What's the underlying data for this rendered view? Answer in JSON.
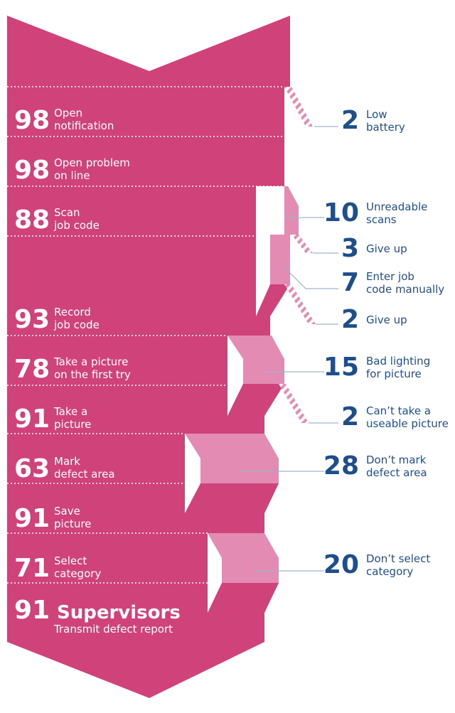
{
  "colors": {
    "main": "#d0427a",
    "branch": "#e38bb2",
    "text_numbers": "#1f4e8c",
    "connector": "#9db3cc"
  },
  "steps": [
    {
      "value": "98",
      "label": [
        "Open",
        "notification"
      ]
    },
    {
      "value": "98",
      "label": [
        "Open problem",
        "on line"
      ]
    },
    {
      "value": "88",
      "label": [
        "Scan",
        "job code"
      ]
    },
    {
      "value": "93",
      "label": [
        "Record",
        "job code"
      ]
    },
    {
      "value": "78",
      "label": [
        "Take a picture",
        "on the first try"
      ]
    },
    {
      "value": "91",
      "label": [
        "Take a",
        "picture"
      ]
    },
    {
      "value": "63",
      "label": [
        "Mark",
        "defect area"
      ]
    },
    {
      "value": "91",
      "label": [
        "Save",
        "picture"
      ]
    },
    {
      "value": "71",
      "label": [
        "Select",
        "category"
      ]
    }
  ],
  "final_step": {
    "value": "91",
    "title": "Supervisors",
    "subtitle": "Transmit defect report"
  },
  "dropouts": [
    {
      "value": "2",
      "label": [
        "Low",
        "battery"
      ]
    },
    {
      "value": "10",
      "label": [
        "Unreadable",
        "scans"
      ]
    },
    {
      "value": "3",
      "label": [
        "Give up"
      ]
    },
    {
      "value": "7",
      "label": [
        "Enter job",
        "code manually"
      ]
    },
    {
      "value": "2",
      "label": [
        "Give up"
      ]
    },
    {
      "value": "15",
      "label": [
        "Bad lighting",
        "for picture"
      ]
    },
    {
      "value": "2",
      "label": [
        "Can’t take a",
        "useable picture"
      ]
    },
    {
      "value": "28",
      "label": [
        "Don’t mark",
        "defect area"
      ]
    },
    {
      "value": "20",
      "label": [
        "Don’t select",
        "category"
      ]
    }
  ]
}
